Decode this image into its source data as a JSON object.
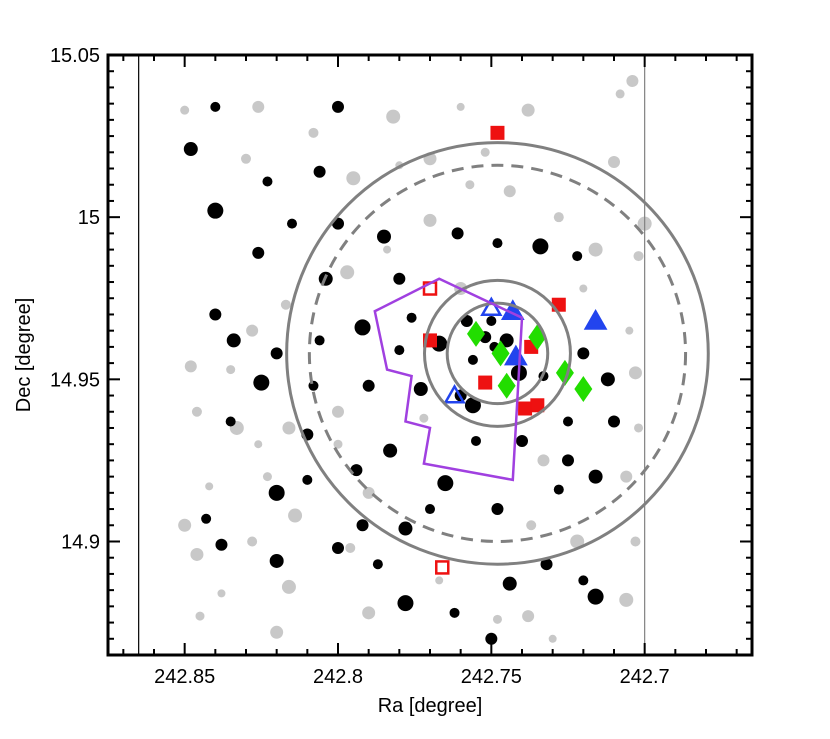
{
  "chart_data": {
    "type": "scatter",
    "title": "",
    "xlabel": "Ra [degree]",
    "ylabel": "Dec [degree]",
    "xlim": [
      242.875,
      242.665
    ],
    "ylim": [
      14.865,
      15.05
    ],
    "x_reversed": true,
    "grid": false,
    "legend": "none",
    "x_ticks": [
      242.85,
      242.8,
      242.75,
      242.7
    ],
    "x_tick_labels": [
      "242.85",
      "242.8",
      "242.75",
      "242.7"
    ],
    "y_ticks": [
      14.9,
      14.95,
      15.0,
      15.05
    ],
    "y_tick_labels": [
      "14.9",
      "14.95",
      "15",
      "15.05"
    ],
    "colors": {
      "black_points": "#000000",
      "gray_points": "#c8c8c8",
      "red_squares": "#ee1111",
      "blue_triangles": "#2244ee",
      "green_diamonds": "#22dd00",
      "purple_polygon": "#a040e0",
      "circles": "#808080"
    },
    "vertical_lines": [
      242.865,
      242.7
    ],
    "circles": [
      {
        "center": [
          242.748,
          14.958
        ],
        "radius_deg": 0.065,
        "style": "solid"
      },
      {
        "center": [
          242.748,
          14.958
        ],
        "radius_deg": 0.058,
        "style": "dashed"
      },
      {
        "center": [
          242.748,
          14.958
        ],
        "radius_deg": 0.0225,
        "style": "solid"
      },
      {
        "center": [
          242.748,
          14.958
        ],
        "radius_deg": 0.0155,
        "style": "solid"
      }
    ],
    "polygon": [
      [
        242.767,
        14.981
      ],
      [
        242.788,
        14.971
      ],
      [
        242.784,
        14.953
      ],
      [
        242.776,
        14.951
      ],
      [
        242.778,
        14.937
      ],
      [
        242.77,
        14.935
      ],
      [
        242.772,
        14.924
      ],
      [
        242.743,
        14.919
      ],
      [
        242.74,
        14.969
      ]
    ],
    "series": [
      {
        "marker": "square-filled",
        "color": "#ee1111",
        "points": [
          [
            242.748,
            15.026
          ],
          [
            242.77,
            14.962
          ],
          [
            242.728,
            14.973
          ],
          [
            242.737,
            14.96
          ],
          [
            242.752,
            14.949
          ],
          [
            242.739,
            14.941
          ],
          [
            242.735,
            14.942
          ]
        ]
      },
      {
        "marker": "square-open",
        "color": "#ee1111",
        "points": [
          [
            242.77,
            14.978
          ],
          [
            242.766,
            14.892
          ]
        ]
      },
      {
        "marker": "triangle-filled",
        "color": "#2244ee",
        "points": [
          [
            242.743,
            14.971
          ],
          [
            242.716,
            14.968
          ],
          [
            242.742,
            14.957
          ]
        ]
      },
      {
        "marker": "triangle-open",
        "color": "#2244ee",
        "points": [
          [
            242.75,
            14.972
          ],
          [
            242.762,
            14.945
          ]
        ]
      },
      {
        "marker": "diamond-filled",
        "color": "#22dd00",
        "points": [
          [
            242.755,
            14.964
          ],
          [
            242.735,
            14.963
          ],
          [
            242.747,
            14.958
          ],
          [
            242.745,
            14.948
          ],
          [
            242.726,
            14.952
          ],
          [
            242.72,
            14.947
          ]
        ]
      },
      {
        "marker": "circle-filled",
        "color": "#000000",
        "points": [
          [
            242.84,
            15.034
          ],
          [
            242.8,
            15.034
          ],
          [
            242.848,
            15.021
          ],
          [
            242.806,
            15.014
          ],
          [
            242.823,
            15.011
          ],
          [
            242.84,
            15.002
          ],
          [
            242.815,
            14.998
          ],
          [
            242.8,
            14.998
          ],
          [
            242.785,
            14.994
          ],
          [
            242.761,
            14.995
          ],
          [
            242.748,
            14.992
          ],
          [
            242.734,
            14.991
          ],
          [
            242.722,
            14.988
          ],
          [
            242.826,
            14.989
          ],
          [
            242.804,
            14.981
          ],
          [
            242.78,
            14.981
          ],
          [
            242.776,
            14.969
          ],
          [
            242.792,
            14.966
          ],
          [
            242.806,
            14.962
          ],
          [
            242.82,
            14.958
          ],
          [
            242.834,
            14.962
          ],
          [
            242.84,
            14.97
          ],
          [
            242.78,
            14.959
          ],
          [
            242.767,
            14.961
          ],
          [
            242.756,
            14.956
          ],
          [
            242.76,
            14.945
          ],
          [
            242.773,
            14.947
          ],
          [
            242.79,
            14.948
          ],
          [
            242.808,
            14.948
          ],
          [
            242.825,
            14.949
          ],
          [
            242.835,
            14.937
          ],
          [
            242.81,
            14.933
          ],
          [
            242.783,
            14.928
          ],
          [
            242.794,
            14.922
          ],
          [
            242.81,
            14.919
          ],
          [
            242.82,
            14.915
          ],
          [
            242.843,
            14.907
          ],
          [
            242.838,
            14.899
          ],
          [
            242.82,
            14.894
          ],
          [
            242.8,
            14.898
          ],
          [
            242.787,
            14.893
          ],
          [
            242.778,
            14.881
          ],
          [
            242.762,
            14.878
          ],
          [
            242.75,
            14.87
          ],
          [
            242.744,
            14.887
          ],
          [
            242.732,
            14.893
          ],
          [
            242.72,
            14.888
          ],
          [
            242.716,
            14.883
          ],
          [
            242.728,
            14.916
          ],
          [
            242.725,
            14.925
          ],
          [
            242.716,
            14.92
          ],
          [
            242.74,
            14.931
          ],
          [
            242.755,
            14.931
          ],
          [
            242.756,
            14.942
          ],
          [
            242.749,
            14.96
          ],
          [
            242.752,
            14.963
          ],
          [
            242.745,
            14.962
          ],
          [
            242.758,
            14.968
          ],
          [
            242.75,
            14.968
          ],
          [
            242.741,
            14.952
          ],
          [
            242.733,
            14.951
          ],
          [
            242.72,
            14.958
          ],
          [
            242.712,
            14.95
          ],
          [
            242.71,
            14.937
          ],
          [
            242.725,
            14.937
          ],
          [
            242.765,
            14.918
          ],
          [
            242.77,
            14.91
          ],
          [
            242.748,
            14.91
          ],
          [
            242.778,
            14.904
          ],
          [
            242.792,
            14.905
          ]
        ]
      },
      {
        "marker": "circle-filled",
        "color": "#c8c8c8",
        "points": [
          [
            242.85,
            15.033
          ],
          [
            242.826,
            15.034
          ],
          [
            242.808,
            15.026
          ],
          [
            242.782,
            15.031
          ],
          [
            242.76,
            15.034
          ],
          [
            242.738,
            15.033
          ],
          [
            242.708,
            15.038
          ],
          [
            242.704,
            15.042
          ],
          [
            242.83,
            15.018
          ],
          [
            242.795,
            15.012
          ],
          [
            242.78,
            15.016
          ],
          [
            242.77,
            15.018
          ],
          [
            242.752,
            15.02
          ],
          [
            242.71,
            15.017
          ],
          [
            242.702,
            14.988
          ],
          [
            242.7,
            14.998
          ],
          [
            242.705,
            14.965
          ],
          [
            242.703,
            14.952
          ],
          [
            242.702,
            14.935
          ],
          [
            242.706,
            14.92
          ],
          [
            242.703,
            14.9
          ],
          [
            242.706,
            14.882
          ],
          [
            242.73,
            14.87
          ],
          [
            242.82,
            14.872
          ],
          [
            242.845,
            14.877
          ],
          [
            242.848,
            14.954
          ],
          [
            242.846,
            14.94
          ],
          [
            242.833,
            14.935
          ],
          [
            242.826,
            14.93
          ],
          [
            242.816,
            14.935
          ],
          [
            242.8,
            14.93
          ],
          [
            242.79,
            14.915
          ],
          [
            242.796,
            14.898
          ],
          [
            242.816,
            14.886
          ],
          [
            242.838,
            14.884
          ],
          [
            242.846,
            14.896
          ],
          [
            242.835,
            14.953
          ],
          [
            242.828,
            14.965
          ],
          [
            242.817,
            14.973
          ],
          [
            242.797,
            14.983
          ],
          [
            242.784,
            14.99
          ],
          [
            242.77,
            14.999
          ],
          [
            242.757,
            15.01
          ],
          [
            242.744,
            15.008
          ],
          [
            242.728,
            15.0
          ],
          [
            242.716,
            14.99
          ],
          [
            242.72,
            14.978
          ],
          [
            242.76,
            14.978
          ],
          [
            242.772,
            14.938
          ],
          [
            242.733,
            14.925
          ],
          [
            242.737,
            14.905
          ],
          [
            242.722,
            14.9
          ],
          [
            242.767,
            14.888
          ],
          [
            242.79,
            14.878
          ],
          [
            242.748,
            14.876
          ],
          [
            242.738,
            14.877
          ],
          [
            242.828,
            14.9
          ],
          [
            242.814,
            14.908
          ],
          [
            242.842,
            14.917
          ],
          [
            242.85,
            14.905
          ],
          [
            242.823,
            14.92
          ],
          [
            242.8,
            14.94
          ]
        ]
      }
    ]
  }
}
